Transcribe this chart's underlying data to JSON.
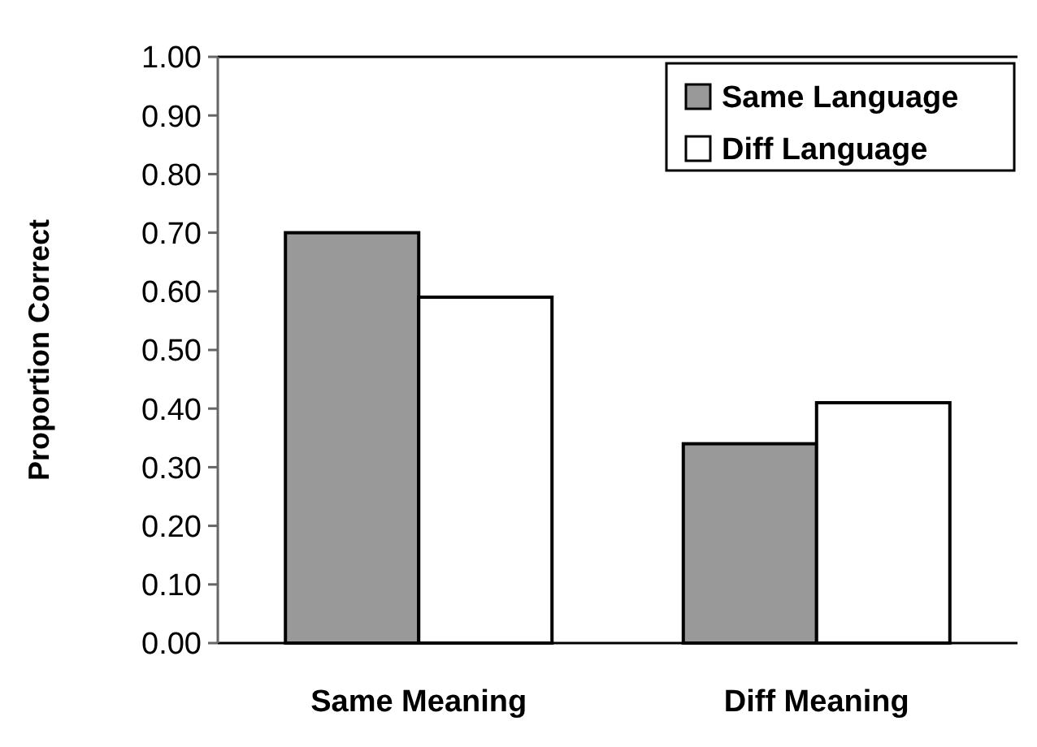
{
  "chart_data": {
    "type": "bar",
    "ylabel": "Proportion Correct",
    "categories": [
      "Same Meaning",
      "Diff Meaning"
    ],
    "series": [
      {
        "name": "Same Language",
        "color": "#999999",
        "values": [
          0.7,
          0.34
        ]
      },
      {
        "name": "Diff Language",
        "color": "#ffffff",
        "values": [
          0.59,
          0.41
        ]
      }
    ],
    "ylim": [
      0,
      1
    ],
    "yticks": [
      {
        "value": 0,
        "label": "0.00"
      },
      {
        "value": 0.1,
        "label": "0.10"
      },
      {
        "value": 0.2,
        "label": "0.20"
      },
      {
        "value": 0.3,
        "label": "0.30"
      },
      {
        "value": 0.4,
        "label": "0.40"
      },
      {
        "value": 0.5,
        "label": "0.50"
      },
      {
        "value": 0.6,
        "label": "0.60"
      },
      {
        "value": 0.7,
        "label": "0.70"
      },
      {
        "value": 0.8,
        "label": "0.80"
      },
      {
        "value": 0.9,
        "label": "0.90"
      },
      {
        "value": 1,
        "label": "1.00"
      }
    ],
    "grid": false,
    "legend": "top right"
  }
}
